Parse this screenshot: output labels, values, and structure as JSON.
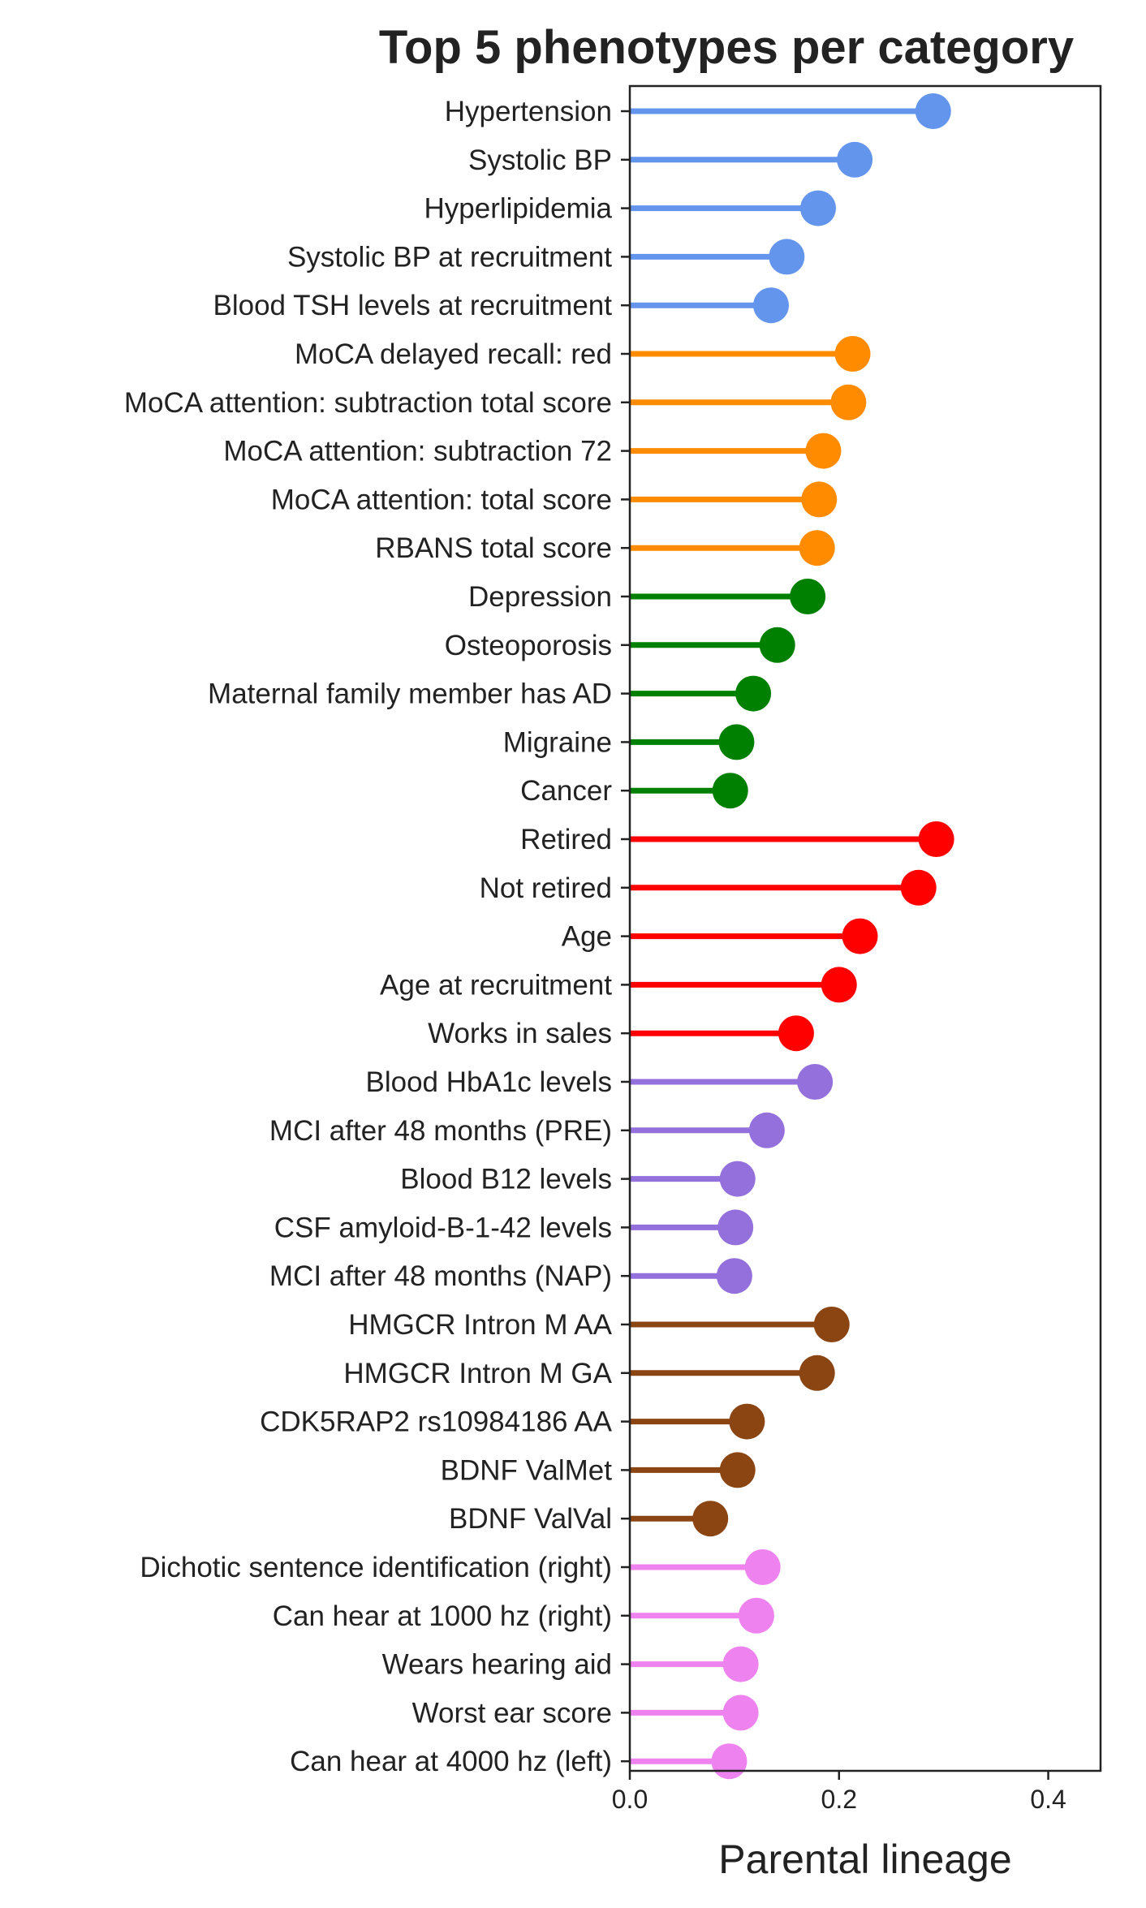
{
  "chart_data": {
    "type": "lollipop",
    "orientation": "horizontal",
    "title": "Top 5 phenotypes per category",
    "xlabel": "Parental lineage",
    "ylabel": "",
    "xlim": [
      0,
      0.45
    ],
    "xticks": [
      "0.0",
      "0.2",
      "0.4"
    ],
    "grid": false,
    "legend": "none",
    "groups": [
      {
        "color": "#6495ED",
        "items": [
          {
            "label": "Hypertension",
            "value": 0.29
          },
          {
            "label": "Systolic BP",
            "value": 0.215
          },
          {
            "label": "Hyperlipidemia",
            "value": 0.18
          },
          {
            "label": "Systolic BP at recruitment",
            "value": 0.15
          },
          {
            "label": "Blood TSH levels at recruitment",
            "value": 0.135
          }
        ]
      },
      {
        "color": "#FF8C00",
        "items": [
          {
            "label": "MoCA delayed recall: red",
            "value": 0.213
          },
          {
            "label": "MoCA attention: subtraction total score",
            "value": 0.209
          },
          {
            "label": "MoCA attention: subtraction 72",
            "value": 0.185
          },
          {
            "label": "MoCA attention: total score",
            "value": 0.181
          },
          {
            "label": "RBANS total score",
            "value": 0.179
          }
        ]
      },
      {
        "color": "#008000",
        "items": [
          {
            "label": "Depression",
            "value": 0.17
          },
          {
            "label": "Osteoporosis",
            "value": 0.141
          },
          {
            "label": "Maternal family member has AD",
            "value": 0.118
          },
          {
            "label": "Migraine",
            "value": 0.102
          },
          {
            "label": "Cancer",
            "value": 0.096
          }
        ]
      },
      {
        "color": "#FF0000",
        "items": [
          {
            "label": "Retired",
            "value": 0.293
          },
          {
            "label": "Not retired",
            "value": 0.276
          },
          {
            "label": "Age",
            "value": 0.22
          },
          {
            "label": "Age at recruitment",
            "value": 0.2
          },
          {
            "label": "Works in sales",
            "value": 0.159
          }
        ]
      },
      {
        "color": "#9370DB",
        "items": [
          {
            "label": "Blood HbA1c levels",
            "value": 0.177
          },
          {
            "label": "MCI after 48 months (PRE)",
            "value": 0.131
          },
          {
            "label": "Blood B12 levels",
            "value": 0.103
          },
          {
            "label": "CSF amyloid-B-1-42 levels",
            "value": 0.101
          },
          {
            "label": "MCI after 48 months (NAP)",
            "value": 0.1
          }
        ]
      },
      {
        "color": "#8B4513",
        "items": [
          {
            "label": "HMGCR Intron M AA",
            "value": 0.193
          },
          {
            "label": "HMGCR Intron M GA",
            "value": 0.179
          },
          {
            "label": "CDK5RAP2 rs10984186 AA",
            "value": 0.112
          },
          {
            "label": "BDNF ValMet",
            "value": 0.103
          },
          {
            "label": "BDNF ValVal",
            "value": 0.077
          }
        ]
      },
      {
        "color": "#EE82EE",
        "items": [
          {
            "label": "Dichotic sentence identification (right)",
            "value": 0.127
          },
          {
            "label": "Can hear at 1000 hz (right)",
            "value": 0.121
          },
          {
            "label": "Wears hearing aid",
            "value": 0.106
          },
          {
            "label": "Worst ear score",
            "value": 0.106
          },
          {
            "label": "Can hear at 4000 hz (left)",
            "value": 0.095
          }
        ]
      }
    ]
  }
}
